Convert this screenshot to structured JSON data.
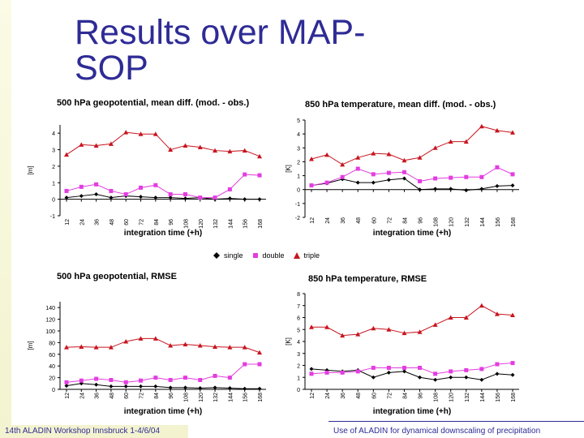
{
  "slide": {
    "title_line1": "Results over MAP-",
    "title_line2": "SOP"
  },
  "legend": {
    "single": "single",
    "double": "double",
    "triple": "triple"
  },
  "footer": {
    "left": "14th ALADIN Workshop Innsbruck 1-4/6/04",
    "right": "Use of ALADIN for dynamical downscaling of precipitation"
  },
  "colors": {
    "single": "#000000",
    "double": "#e33de0",
    "triple": "#c8141e",
    "title": "#2e2b96"
  },
  "chart_data": [
    {
      "type": "line",
      "title": "500 hPa geopotential, mean diff. (mod. - obs.)",
      "xlabel": "integration time (+h)",
      "ylabel": "[m]",
      "x": [
        "12",
        "24",
        "36",
        "48",
        "60",
        "72",
        "84",
        "96",
        "108",
        "120",
        "132",
        "144",
        "156",
        "168"
      ],
      "ytick_labels": [
        "4",
        "3",
        "2",
        "1",
        "0",
        "-1"
      ],
      "ylim": [
        -1,
        4.5
      ],
      "series": [
        {
          "name": "single",
          "values": [
            0.1,
            0.2,
            0.3,
            0.1,
            0.2,
            0.15,
            0.1,
            0.1,
            0.05,
            0.1,
            0.0,
            0.05,
            0.0,
            0.0
          ]
        },
        {
          "name": "double",
          "values": [
            0.5,
            0.75,
            0.9,
            0.5,
            0.3,
            0.7,
            0.85,
            0.3,
            0.3,
            0.1,
            0.1,
            0.6,
            1.5,
            1.45
          ]
        },
        {
          "name": "triple",
          "values": [
            2.7,
            3.3,
            3.25,
            3.35,
            4.05,
            3.95,
            3.95,
            3.0,
            3.25,
            3.15,
            2.95,
            2.9,
            2.95,
            2.6
          ]
        }
      ]
    },
    {
      "type": "line",
      "title": "850 hPa temperature, mean diff. (mod. - obs.)",
      "xlabel": "integration time (+h)",
      "ylabel": "[K]",
      "x": [
        "12",
        "24",
        "36",
        "48",
        "60",
        "72",
        "84",
        "96",
        "108",
        "120",
        "132",
        "144",
        "156",
        "168"
      ],
      "ytick_labels": [
        "5",
        "4",
        "3",
        "2",
        "1",
        "0",
        "-1",
        "-2"
      ],
      "ylim": [
        -2,
        5
      ],
      "series": [
        {
          "name": "single",
          "values": [
            0.3,
            0.45,
            0.75,
            0.5,
            0.5,
            0.7,
            0.8,
            0.0,
            0.05,
            0.05,
            -0.05,
            0.05,
            0.25,
            0.3
          ]
        },
        {
          "name": "double",
          "values": [
            0.3,
            0.5,
            0.9,
            1.5,
            1.1,
            1.2,
            1.25,
            0.6,
            0.8,
            0.85,
            0.9,
            0.9,
            1.6,
            1.1
          ]
        },
        {
          "name": "triple",
          "values": [
            2.2,
            2.5,
            1.8,
            2.3,
            2.6,
            2.55,
            2.1,
            2.3,
            3.0,
            3.45,
            3.45,
            4.55,
            4.25,
            4.1
          ]
        }
      ]
    },
    {
      "type": "line",
      "title": "500 hPa geopotential, RMSE",
      "xlabel": "integration time (+h)",
      "ylabel": "[m]",
      "x": [
        "12",
        "24",
        "36",
        "48",
        "60",
        "72",
        "84",
        "96",
        "108",
        "120",
        "132",
        "144",
        "156",
        "168"
      ],
      "ytick_labels": [
        "140",
        "120",
        "100",
        "80",
        "60",
        "40",
        "20",
        "0"
      ],
      "ylim": [
        0,
        150
      ],
      "series": [
        {
          "name": "single",
          "values": [
            6,
            10,
            8,
            5,
            5,
            5,
            5,
            3,
            3,
            2,
            3,
            2,
            1,
            1
          ]
        },
        {
          "name": "double",
          "values": [
            12,
            15,
            18,
            16,
            12,
            15,
            20,
            16,
            20,
            16,
            23,
            20,
            43,
            43
          ]
        },
        {
          "name": "triple",
          "values": [
            72,
            73,
            72,
            72,
            82,
            87,
            87,
            75,
            77,
            75,
            73,
            72,
            72,
            63
          ]
        }
      ]
    },
    {
      "type": "line",
      "title": "850 hPa temperature, RMSE",
      "xlabel": "integration time (+h)",
      "ylabel": "[K]",
      "x": [
        "12",
        "24",
        "36",
        "48",
        "60",
        "72",
        "84",
        "96",
        "108",
        "120",
        "132",
        "144",
        "156",
        "168"
      ],
      "ytick_labels": [
        "8",
        "7",
        "6",
        "5",
        "4",
        "3",
        "2",
        "1",
        "0"
      ],
      "ylim": [
        0,
        8
      ],
      "series": [
        {
          "name": "single",
          "values": [
            1.7,
            1.6,
            1.5,
            1.6,
            1.0,
            1.4,
            1.5,
            1.0,
            0.8,
            1.0,
            1.0,
            0.8,
            1.3,
            1.2
          ]
        },
        {
          "name": "double",
          "values": [
            1.3,
            1.4,
            1.4,
            1.5,
            1.8,
            1.8,
            1.8,
            1.8,
            1.3,
            1.5,
            1.6,
            1.7,
            2.1,
            2.2
          ]
        },
        {
          "name": "triple",
          "values": [
            5.2,
            5.2,
            4.5,
            4.6,
            5.1,
            5.0,
            4.7,
            4.8,
            5.4,
            6.0,
            6.0,
            7.0,
            6.3,
            6.2
          ]
        }
      ]
    }
  ]
}
